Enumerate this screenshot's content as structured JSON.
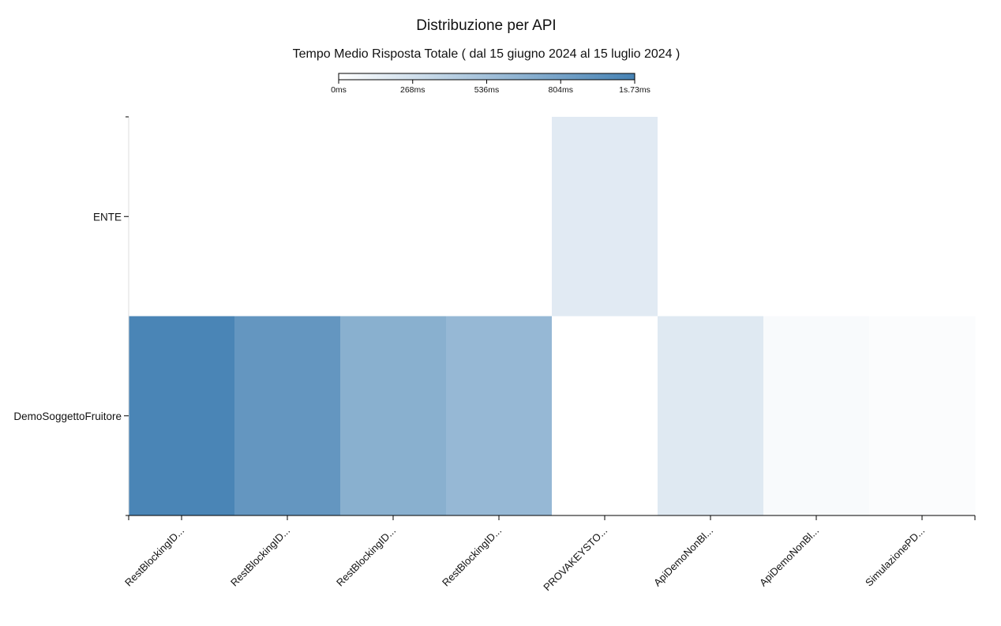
{
  "chart_data": {
    "type": "heatmap",
    "title": "Distribuzione per API",
    "subtitle": "Tempo Medio Risposta Totale ( dal 15 giugno 2024 al 15 luglio 2024 )",
    "color_min": "#ffffff",
    "color_max": "#4682b4",
    "legend": {
      "position": "top-center",
      "min_ms": 0,
      "max_ms": 1730,
      "tick_labels": [
        "0ms",
        "268ms",
        "536ms",
        "804ms",
        "1s.73ms"
      ]
    },
    "x_categories": [
      "RestBlockingID...",
      "RestBlockingID...",
      "RestBlockingID...",
      "RestBlockingID...",
      "PROVAKEYSTO...",
      "ApiDemoNonBl...",
      "ApiDemoNonBl...",
      "SimulazionePD..."
    ],
    "y_categories": [
      "ENTE",
      "DemoSoggettoFruitore"
    ],
    "values_ms": [
      [
        0,
        0,
        0,
        0,
        285,
        0,
        0,
        0
      ],
      [
        1690,
        1450,
        1100,
        980,
        0,
        300,
        70,
        40
      ]
    ]
  }
}
